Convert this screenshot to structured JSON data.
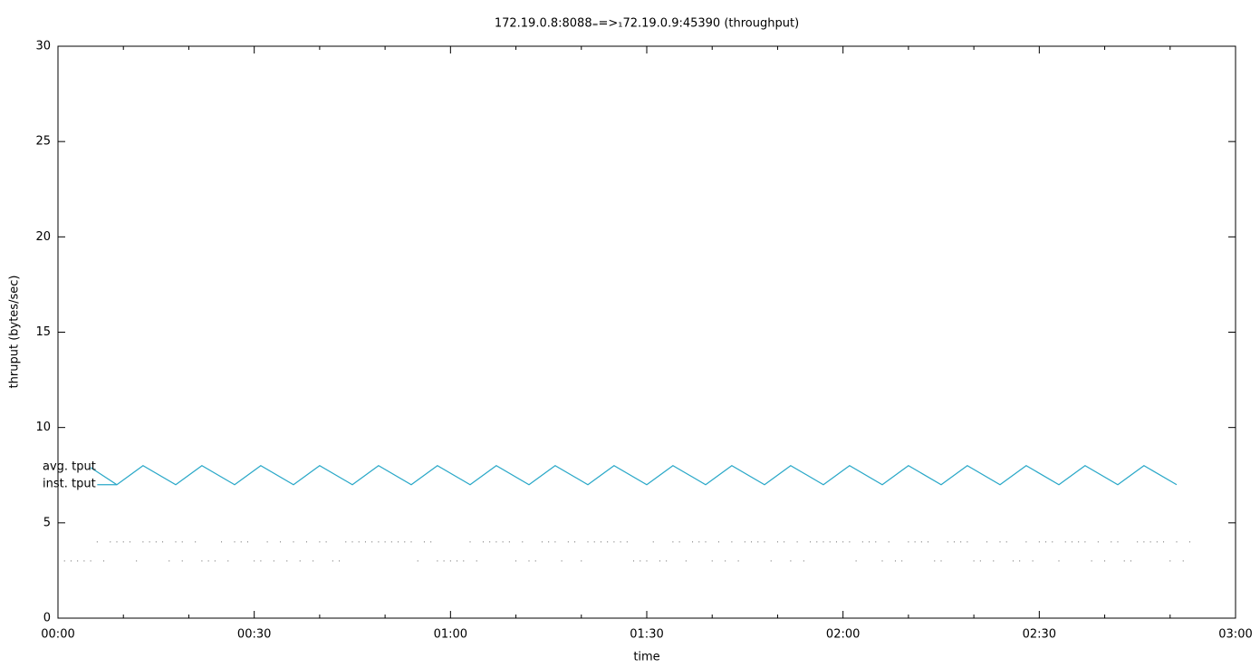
{
  "chart_data": {
    "type": "line",
    "title": "172.19.0.8:8088₌=>₁72.19.0.9:45390 (throughput)",
    "x_label": "time",
    "y_label": "thruput (bytes/sec)",
    "xlim": [
      0,
      180
    ],
    "xticks": [
      {
        "value": 0,
        "label": "00:00"
      },
      {
        "value": 30,
        "label": "00:30"
      },
      {
        "value": 60,
        "label": "01:00"
      },
      {
        "value": 90,
        "label": "01:30"
      },
      {
        "value": 120,
        "label": "02:00"
      },
      {
        "value": 150,
        "label": "02:30"
      },
      {
        "value": 180,
        "label": "03:00"
      }
    ],
    "ylim": [
      0,
      30
    ],
    "yticks": [
      0,
      5,
      10,
      15,
      20,
      25,
      30
    ],
    "series": [
      {
        "name": "avg. tput",
        "color": "#2aa8c8",
        "style": "line",
        "x": [
          5,
          9,
          13,
          18,
          22,
          27,
          31,
          36,
          40,
          45,
          49,
          54,
          58,
          63,
          67,
          72,
          76,
          81,
          85,
          90,
          94,
          99,
          103,
          108,
          112,
          117,
          121,
          126,
          130,
          135,
          139,
          144,
          148,
          153,
          157,
          162,
          166,
          171
        ],
        "values": [
          7.9,
          7,
          8,
          7,
          8,
          7,
          8,
          7,
          8,
          7,
          8,
          7,
          8,
          7,
          8,
          7,
          8,
          7,
          8,
          7,
          8,
          7,
          8,
          7,
          8,
          7,
          8,
          7,
          8,
          7,
          8,
          7,
          8,
          7,
          8,
          7,
          8,
          7
        ]
      },
      {
        "name": "inst. tput",
        "color": "#2aa8c8",
        "style": "line",
        "x": [
          6,
          9
        ],
        "values": [
          7,
          7
        ]
      },
      {
        "color": "#666666",
        "style": "dots",
        "x": [
          6,
          8,
          9,
          10,
          11,
          13,
          14,
          15,
          16,
          18,
          19,
          21,
          25,
          27,
          28,
          29,
          32,
          34,
          36,
          38,
          40,
          41,
          44,
          45,
          46,
          47,
          48,
          49,
          50,
          51,
          52,
          53,
          54,
          56,
          57,
          63,
          65,
          66,
          67,
          68,
          69,
          71,
          74,
          75,
          76,
          78,
          79,
          81,
          82,
          83,
          84,
          85,
          86,
          87,
          91,
          94,
          95,
          97,
          98,
          99,
          101,
          103,
          105,
          106,
          107,
          108,
          110,
          111,
          113,
          115,
          116,
          117,
          118,
          119,
          120,
          121,
          123,
          124,
          125,
          127,
          130,
          131,
          132,
          133,
          136,
          137,
          138,
          139,
          142,
          144,
          145,
          148,
          150,
          151,
          152,
          154,
          155,
          156,
          157,
          159,
          161,
          162,
          165,
          166,
          167,
          168,
          169,
          171,
          173
        ],
        "values": [
          4,
          4,
          4,
          4,
          4,
          4,
          4,
          4,
          4,
          4,
          4,
          4,
          4,
          4,
          4,
          4,
          4,
          4,
          4,
          4,
          4,
          4,
          4,
          4,
          4,
          4,
          4,
          4,
          4,
          4,
          4,
          4,
          4,
          4,
          4,
          4,
          4,
          4,
          4,
          4,
          4,
          4,
          4,
          4,
          4,
          4,
          4,
          4,
          4,
          4,
          4,
          4,
          4,
          4,
          4,
          4,
          4,
          4,
          4,
          4,
          4,
          4,
          4,
          4,
          4,
          4,
          4,
          4,
          4,
          4,
          4,
          4,
          4,
          4,
          4,
          4,
          4,
          4,
          4,
          4,
          4,
          4,
          4,
          4,
          4,
          4,
          4,
          4,
          4,
          4,
          4,
          4,
          4,
          4,
          4,
          4,
          4,
          4,
          4,
          4,
          4,
          4,
          4,
          4,
          4,
          4,
          4,
          4,
          4
        ]
      },
      {
        "color": "#666666",
        "style": "dots",
        "x": [
          1,
          2,
          3,
          4,
          5,
          7,
          12,
          17,
          19,
          22,
          23,
          24,
          26,
          30,
          31,
          33,
          35,
          37,
          39,
          42,
          43,
          55,
          58,
          59,
          60,
          61,
          62,
          64,
          70,
          72,
          73,
          77,
          80,
          88,
          89,
          90,
          92,
          93,
          96,
          100,
          102,
          104,
          109,
          112,
          114,
          122,
          126,
          128,
          129,
          134,
          135,
          140,
          141,
          143,
          146,
          147,
          149,
          153,
          158,
          160,
          163,
          164,
          170,
          172
        ],
        "values": [
          3,
          3,
          3,
          3,
          3,
          3,
          3,
          3,
          3,
          3,
          3,
          3,
          3,
          3,
          3,
          3,
          3,
          3,
          3,
          3,
          3,
          3,
          3,
          3,
          3,
          3,
          3,
          3,
          3,
          3,
          3,
          3,
          3,
          3,
          3,
          3,
          3,
          3,
          3,
          3,
          3,
          3,
          3,
          3,
          3,
          3,
          3,
          3,
          3,
          3,
          3,
          3,
          3,
          3,
          3,
          3,
          3,
          3,
          3,
          3,
          3,
          3,
          3,
          3
        ]
      }
    ]
  }
}
